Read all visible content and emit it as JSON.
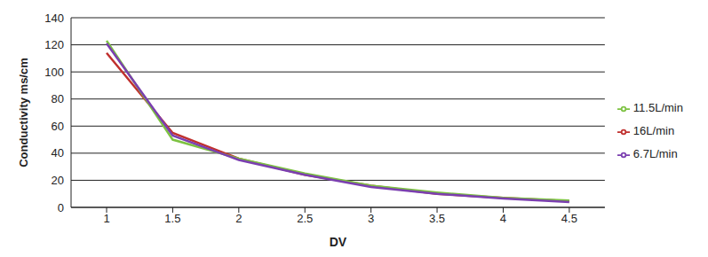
{
  "chart_data": {
    "type": "line",
    "x_label": "DV",
    "y_label": "Conductivity ms/cm",
    "categories": [
      "1",
      "1.5",
      "2",
      "2.5",
      "3",
      "3.5",
      "4",
      "4.5"
    ],
    "series": [
      {
        "name": "16L/min",
        "color": "#c0302e",
        "values": [
          114,
          55,
          36,
          24,
          16,
          10,
          7,
          4.5
        ]
      },
      {
        "name": "11.5L/min",
        "color": "#7dc242",
        "values": [
          123,
          50,
          36,
          25,
          16,
          11,
          7,
          5
        ]
      },
      {
        "name": "6.7L/min",
        "color": "#7b3fb0",
        "values": [
          121,
          53,
          35,
          24,
          15,
          10,
          6.5,
          4
        ]
      }
    ],
    "ylim": [
      0,
      140
    ],
    "yticks": [
      0,
      20,
      40,
      60,
      80,
      100,
      120,
      140
    ],
    "grid": true,
    "legend": "right"
  }
}
